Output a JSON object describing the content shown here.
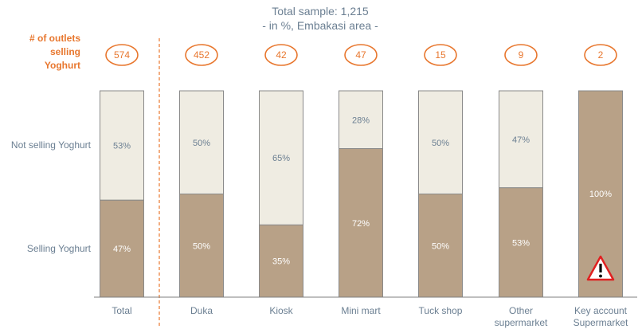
{
  "header": {
    "subtitle_line1": "Total sample: 1,215",
    "subtitle_line2": "- in %, Embakasi area -"
  },
  "outlets_label": [
    "# of outlets",
    "selling",
    "Yoghurt"
  ],
  "row_labels": {
    "not_selling": "Not selling Yoghurt",
    "selling": "Selling Yoghurt"
  },
  "colors": {
    "selling": "#b8a187",
    "not_selling": "#efece2",
    "accent": "#e8772e",
    "text": "#6b7f92",
    "warning": "#e02020"
  },
  "chart_data": {
    "type": "bar",
    "stacked": true,
    "percent": true,
    "categories": [
      [
        "Total"
      ],
      [
        "Duka"
      ],
      [
        "Kiosk"
      ],
      [
        "Mini mart"
      ],
      [
        "Tuck shop"
      ],
      [
        "Other",
        "supermarket"
      ],
      [
        "Key account",
        "Supermarket"
      ]
    ],
    "outlet_counts": [
      "574",
      "452",
      "42",
      "47",
      "15",
      "9",
      "2"
    ],
    "series": [
      {
        "name": "Selling Yoghurt",
        "values": [
          47,
          50,
          35,
          72,
          50,
          53,
          100
        ],
        "labels": [
          "47%",
          "50%",
          "35%",
          "72%",
          "50%",
          "53%",
          "100%"
        ]
      },
      {
        "name": "Not selling Yoghurt",
        "values": [
          53,
          50,
          65,
          28,
          50,
          47,
          0
        ],
        "labels": [
          "53%",
          "50%",
          "65%",
          "28%",
          "50%",
          "47%",
          ""
        ]
      }
    ],
    "ylim": [
      0,
      100
    ],
    "warning_icon_category": 6
  }
}
